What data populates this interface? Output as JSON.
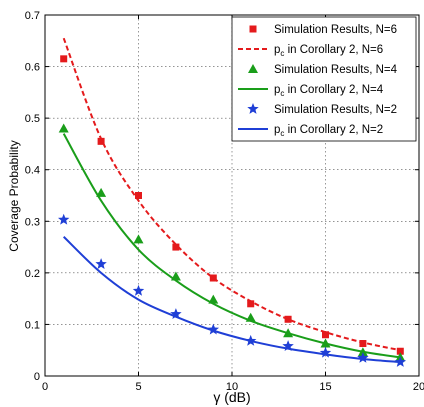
{
  "chart_data": {
    "type": "line",
    "xlabel": "γ (dB)",
    "ylabel": "Coverage Probability",
    "xlim": [
      0,
      20
    ],
    "ylim": [
      0,
      0.7
    ],
    "xticks": [
      0,
      5,
      10,
      15,
      20
    ],
    "yticks": [
      0,
      0.1,
      0.2,
      0.3,
      0.4,
      0.5,
      0.6,
      0.7
    ],
    "xtick_labels": [
      "0",
      "5",
      "10",
      "15",
      "20"
    ],
    "ytick_labels": [
      "0",
      "0.1",
      "0.2",
      "0.3",
      "0.4",
      "0.5",
      "0.6",
      "0.7"
    ],
    "grid": true,
    "legend_position": "top-right",
    "series": [
      {
        "label_main": "Simulation Results, N=6",
        "kind": "marker",
        "marker": "square",
        "color": "#e41a1c",
        "x": [
          1,
          3,
          5,
          7,
          9,
          11,
          13,
          15,
          17,
          19
        ],
        "y": [
          0.615,
          0.455,
          0.35,
          0.25,
          0.19,
          0.14,
          0.11,
          0.08,
          0.063,
          0.048
        ]
      },
      {
        "label_main": "p",
        "label_sub": "c",
        "label_rest": " in Corollary 2, N=6",
        "kind": "line",
        "dash": "dashed",
        "color": "#e41a1c",
        "x": [
          1,
          3,
          5,
          7,
          9,
          11,
          13,
          15,
          17,
          19
        ],
        "y": [
          0.655,
          0.46,
          0.34,
          0.255,
          0.19,
          0.145,
          0.11,
          0.085,
          0.065,
          0.05
        ]
      },
      {
        "label_main": "Simulation Results, N=4",
        "kind": "marker",
        "marker": "triangle",
        "color": "#1a9e1a",
        "x": [
          1,
          3,
          5,
          7,
          9,
          11,
          13,
          15,
          17,
          19
        ],
        "y": [
          0.48,
          0.355,
          0.265,
          0.193,
          0.148,
          0.113,
          0.083,
          0.063,
          0.046,
          0.036
        ]
      },
      {
        "label_main": "p",
        "label_sub": "c",
        "label_rest": " in Corollary 2, N=4",
        "kind": "line",
        "dash": "solid",
        "color": "#1a9e1a",
        "x": [
          1,
          3,
          5,
          7,
          9,
          11,
          13,
          15,
          17,
          19
        ],
        "y": [
          0.47,
          0.34,
          0.245,
          0.185,
          0.14,
          0.107,
          0.083,
          0.063,
          0.047,
          0.036
        ]
      },
      {
        "label_main": "Simulation Results, N=2",
        "kind": "marker",
        "marker": "star",
        "color": "#1f3fd6",
        "x": [
          1,
          3,
          5,
          7,
          9,
          11,
          13,
          15,
          17,
          19
        ],
        "y": [
          0.303,
          0.217,
          0.165,
          0.12,
          0.09,
          0.068,
          0.058,
          0.045,
          0.035,
          0.027
        ]
      },
      {
        "label_main": "p",
        "label_sub": "c",
        "label_rest": " in Corollary 2, N=2",
        "kind": "line",
        "dash": "solid",
        "color": "#1f3fd6",
        "x": [
          1,
          3,
          5,
          7,
          9,
          11,
          13,
          15,
          17,
          19
        ],
        "y": [
          0.27,
          0.2,
          0.148,
          0.115,
          0.088,
          0.068,
          0.053,
          0.042,
          0.033,
          0.027
        ]
      }
    ]
  }
}
